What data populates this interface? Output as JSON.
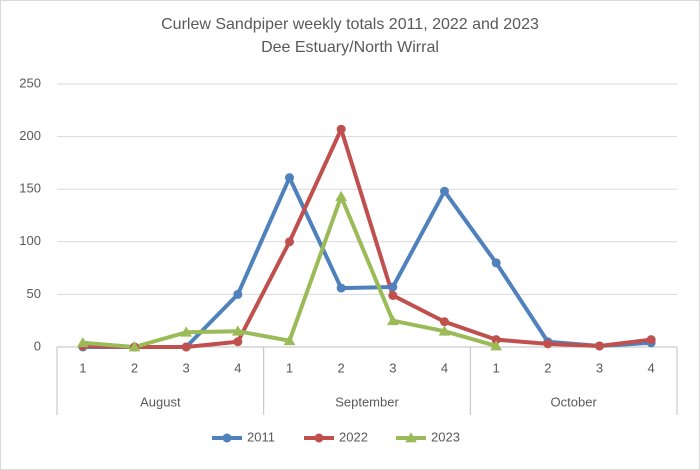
{
  "chart_data": {
    "type": "line",
    "title": "Curlew Sandpiper  weekly totals 2011, 2022 and 2023",
    "subtitle": "Dee Estuary/North Wirral",
    "category_groups": [
      {
        "name": "August",
        "categories": [
          "1",
          "2",
          "3",
          "4"
        ]
      },
      {
        "name": "September",
        "categories": [
          "1",
          "2",
          "3",
          "4"
        ]
      },
      {
        "name": "October",
        "categories": [
          "1",
          "2",
          "3",
          "4"
        ]
      }
    ],
    "series": [
      {
        "name": "2011",
        "color": "#4f81bd",
        "marker": "circle",
        "values": [
          0,
          0,
          0,
          50,
          161,
          56,
          57,
          148,
          80,
          5,
          1,
          4
        ]
      },
      {
        "name": "2022",
        "color": "#c0504d",
        "marker": "circle",
        "values": [
          1,
          0,
          0,
          5,
          100,
          207,
          49,
          24,
          7,
          3,
          1,
          7
        ]
      },
      {
        "name": "2023",
        "color": "#9bbb59",
        "marker": "triangle",
        "values": [
          4,
          0,
          14,
          15,
          6,
          143,
          25,
          15,
          1,
          null,
          null,
          null
        ]
      }
    ],
    "ylim": [
      0,
      250
    ],
    "yticks": [
      0,
      50,
      100,
      150,
      200,
      250
    ],
    "grid": true,
    "legend": "bottom"
  }
}
